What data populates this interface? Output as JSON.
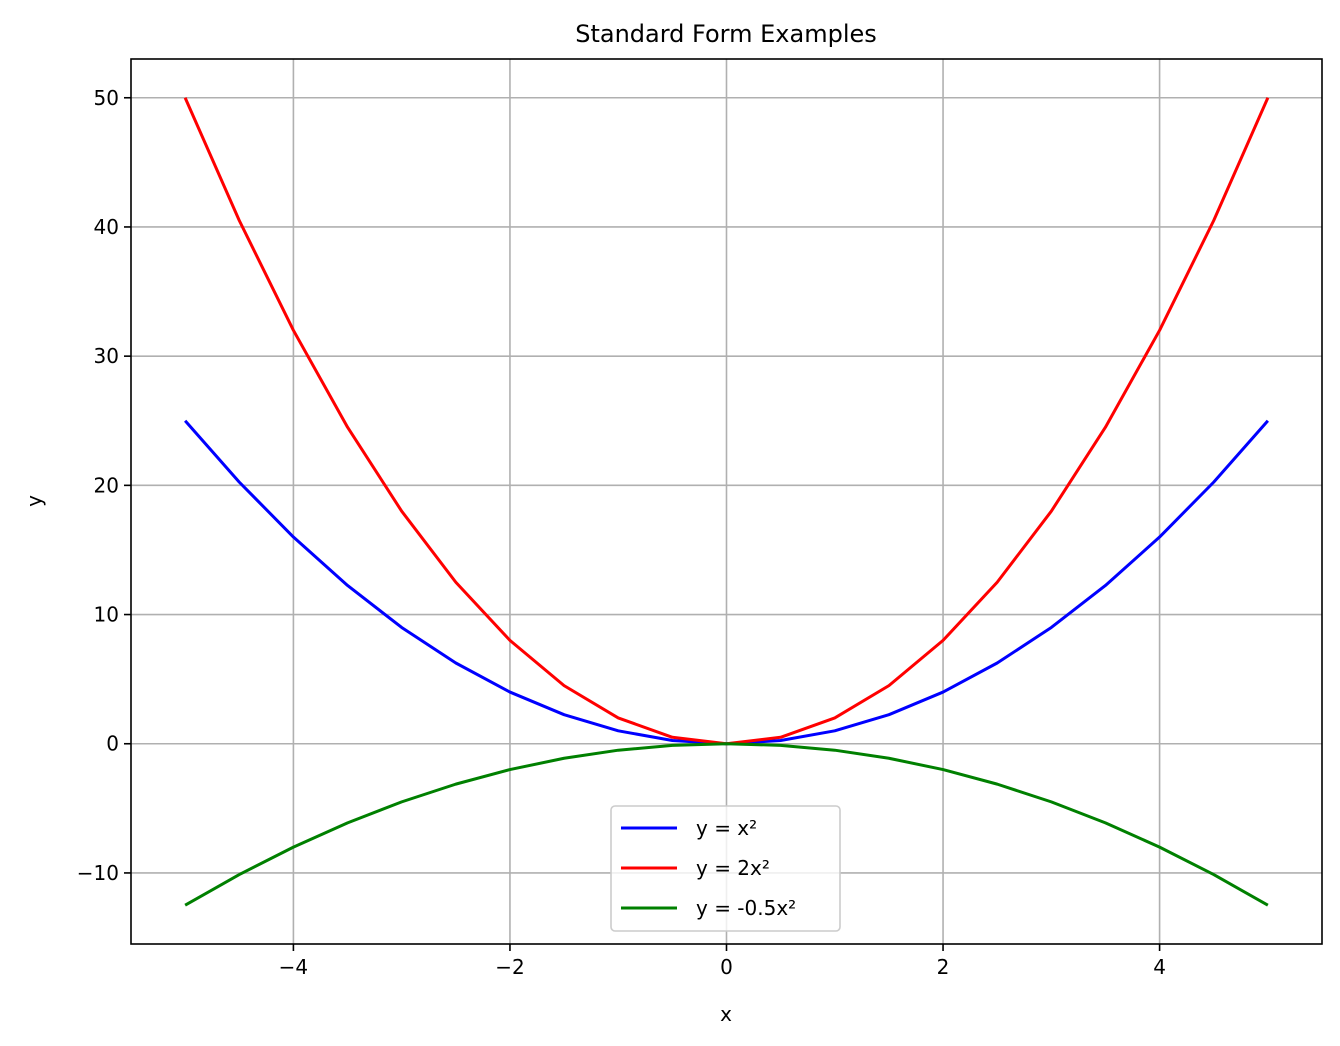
{
  "chart_data": {
    "type": "line",
    "title": "Standard Form Examples",
    "xlabel": "x",
    "ylabel": "y",
    "xlim": [
      -5.5,
      5.5
    ],
    "ylim": [
      -15.5,
      53
    ],
    "xticks": [
      -4,
      -2,
      0,
      2,
      4
    ],
    "yticks": [
      -10,
      0,
      10,
      20,
      30,
      40,
      50
    ],
    "xtick_labels": [
      "−4",
      "−2",
      "0",
      "2",
      "4"
    ],
    "ytick_labels": [
      "−10",
      "0",
      "10",
      "20",
      "30",
      "40",
      "50"
    ],
    "grid": true,
    "legend_position": "bottom-center",
    "x": [
      -5,
      -4.5,
      -4,
      -3.5,
      -3,
      -2.5,
      -2,
      -1.5,
      -1,
      -0.5,
      0,
      0.5,
      1,
      1.5,
      2,
      2.5,
      3,
      3.5,
      4,
      4.5,
      5
    ],
    "series": [
      {
        "name": "y = x²",
        "color": "#0000ff",
        "values": [
          25,
          20.25,
          16,
          12.25,
          9,
          6.25,
          4,
          2.25,
          1,
          0.25,
          0,
          0.25,
          1,
          2.25,
          4,
          6.25,
          9,
          12.25,
          16,
          20.25,
          25
        ]
      },
      {
        "name": "y = 2x²",
        "color": "#ff0000",
        "values": [
          50,
          40.5,
          32,
          24.5,
          18,
          12.5,
          8,
          4.5,
          2,
          0.5,
          0,
          0.5,
          2,
          4.5,
          8,
          12.5,
          18,
          24.5,
          32,
          40.5,
          50
        ]
      },
      {
        "name": "y = -0.5x²",
        "color": "#008000",
        "values": [
          -12.5,
          -10.125,
          -8,
          -6.125,
          -4.5,
          -3.125,
          -2,
          -1.125,
          -0.5,
          -0.125,
          0,
          -0.125,
          -0.5,
          -1.125,
          -2,
          -3.125,
          -4.5,
          -6.125,
          -8,
          -10.125,
          -12.5
        ]
      }
    ]
  }
}
